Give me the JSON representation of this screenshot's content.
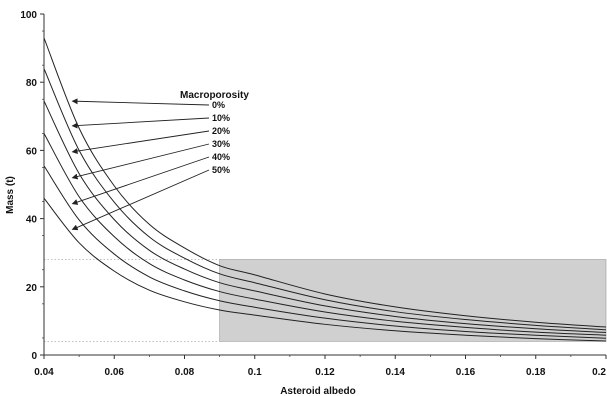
{
  "chart_data": {
    "type": "line",
    "title": "",
    "xlabel": "Asteroid albedo",
    "ylabel": "Mass (t)",
    "xlim": [
      0.04,
      0.2
    ],
    "ylim": [
      0,
      100
    ],
    "x_ticks": [
      0.04,
      0.06,
      0.08,
      0.1,
      0.12,
      0.14,
      0.16,
      0.18,
      0.2
    ],
    "x_tick_labels": [
      "0.04",
      "0.06",
      "0.08",
      "0.1",
      "0.12",
      "0.14",
      "0.16",
      "0.18",
      "0.2"
    ],
    "y_ticks": [
      0,
      20,
      40,
      60,
      80,
      100
    ],
    "y_tick_labels": [
      "0",
      "20",
      "40",
      "60",
      "80",
      "100"
    ],
    "grid": false,
    "legend": {
      "title": "Macroporosity",
      "placement": "top-center"
    },
    "series": [
      {
        "name": "0%",
        "x": [
          0.04,
          0.05,
          0.06,
          0.07,
          0.08,
          0.09,
          0.1,
          0.12,
          0.14,
          0.16,
          0.18,
          0.2
        ],
        "values": [
          93,
          66.5,
          49.6,
          38.3,
          31.4,
          26.2,
          23.5,
          17.9,
          14.1,
          11.5,
          9.6,
          8.2
        ]
      },
      {
        "name": "10%",
        "x": [
          0.04,
          0.05,
          0.06,
          0.07,
          0.08,
          0.09,
          0.1,
          0.12,
          0.14,
          0.16,
          0.18,
          0.2
        ],
        "values": [
          84,
          60,
          44.8,
          34.6,
          28.4,
          23.8,
          21.2,
          16.2,
          12.7,
          10.4,
          8.7,
          7.4
        ]
      },
      {
        "name": "20%",
        "x": [
          0.04,
          0.05,
          0.06,
          0.07,
          0.08,
          0.09,
          0.1,
          0.12,
          0.14,
          0.16,
          0.18,
          0.2
        ],
        "values": [
          74.5,
          53.2,
          39.7,
          30.7,
          25.2,
          21.2,
          18.8,
          14.4,
          11.3,
          9.2,
          7.7,
          6.6
        ]
      },
      {
        "name": "30%",
        "x": [
          0.04,
          0.05,
          0.06,
          0.07,
          0.08,
          0.09,
          0.1,
          0.12,
          0.14,
          0.16,
          0.18,
          0.2
        ],
        "values": [
          65,
          46.4,
          34.7,
          26.8,
          22.0,
          18.6,
          16.4,
          12.6,
          9.9,
          8.1,
          6.7,
          5.8
        ]
      },
      {
        "name": "40%",
        "x": [
          0.04,
          0.05,
          0.06,
          0.07,
          0.08,
          0.09,
          0.1,
          0.12,
          0.14,
          0.16,
          0.18,
          0.2
        ],
        "values": [
          55.5,
          39.6,
          29.6,
          22.9,
          18.8,
          15.9,
          14.0,
          10.8,
          8.5,
          6.9,
          5.8,
          4.9
        ]
      },
      {
        "name": "50%",
        "x": [
          0.04,
          0.05,
          0.06,
          0.07,
          0.08,
          0.09,
          0.1,
          0.12,
          0.14,
          0.16,
          0.18,
          0.2
        ],
        "values": [
          46,
          32.9,
          24.6,
          19.0,
          15.6,
          13.2,
          11.7,
          9.0,
          7.1,
          5.8,
          4.8,
          4.1
        ]
      }
    ],
    "shaded_region": {
      "x": [
        0.09,
        0.2
      ],
      "y": [
        4,
        28
      ],
      "color": "#d0d0d0"
    },
    "reference_lines": [
      {
        "orientation": "horizontal",
        "y": 28,
        "x": [
          0.04,
          0.09
        ],
        "style": "dotted"
      },
      {
        "orientation": "horizontal",
        "y": 4,
        "x": [
          0.04,
          0.09
        ],
        "style": "dotted"
      }
    ],
    "colors": {
      "line": "#222222",
      "axis": "#333333",
      "shade": "#d0d0d0",
      "shade_edge": "#999999",
      "background": "#ffffff"
    }
  }
}
